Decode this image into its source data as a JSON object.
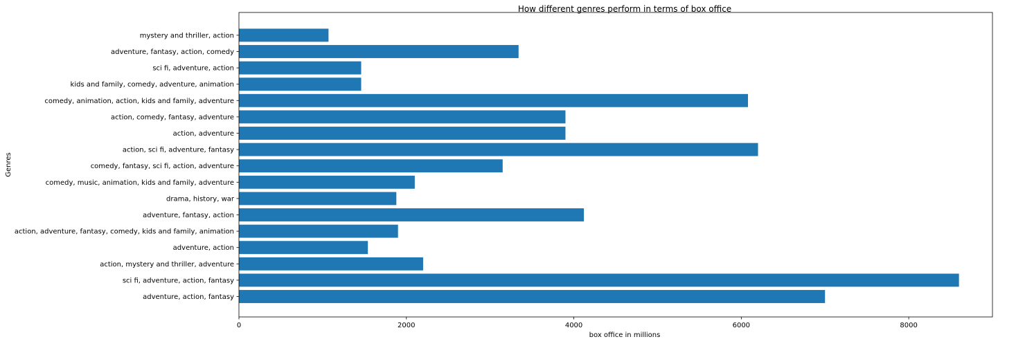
{
  "chart_data": {
    "type": "bar",
    "orientation": "horizontal",
    "title": "How different genres perform in terms of box office",
    "xlabel": "box office in millions",
    "ylabel": "Genres",
    "xlim": [
      0,
      9000
    ],
    "xticks": [
      0,
      2000,
      4000,
      6000,
      8000
    ],
    "grid": false,
    "legend": "none",
    "bar_color": "#1f77b4",
    "categories": [
      "adventure, action, fantasy",
      "sci fi, adventure, action, fantasy",
      "action, mystery and thriller, adventure",
      "adventure, action",
      "action, adventure, fantasy, comedy, kids and family, animation",
      "adventure, fantasy, action",
      "drama, history, war",
      "comedy, music, animation, kids and family, adventure",
      "comedy, fantasy, sci fi, action, adventure",
      "action, sci fi, adventure, fantasy",
      "action, adventure",
      "action, comedy, fantasy, adventure",
      "comedy, animation, action, kids and family, adventure",
      "kids and family, comedy, adventure, animation",
      "sci fi, adventure, action",
      "adventure, fantasy, action, comedy",
      "mystery and thriller, action"
    ],
    "values": [
      7000,
      8600,
      2200,
      1540,
      1900,
      4120,
      1880,
      2100,
      3150,
      6200,
      3900,
      3900,
      6080,
      1460,
      1460,
      3340,
      1070
    ]
  }
}
